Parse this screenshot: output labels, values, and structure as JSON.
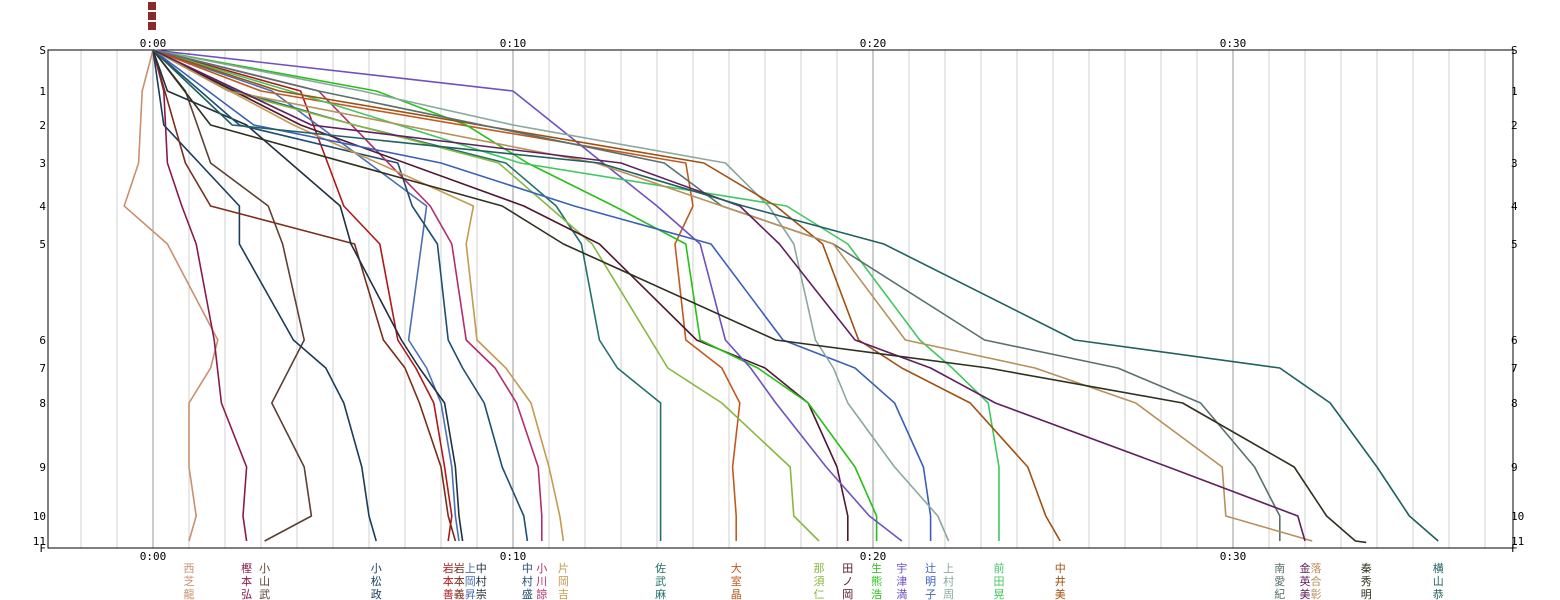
{
  "chart_data": {
    "type": "line",
    "x_unit": "minutes",
    "xlim": [
      0,
      37.5
    ],
    "x_ticks": [
      {
        "v": 0,
        "label": "0:00"
      },
      {
        "v": 10,
        "label": "0:10"
      },
      {
        "v": 20,
        "label": "0:20"
      },
      {
        "v": 30,
        "label": "0:30"
      }
    ],
    "y_ticks": [
      {
        "v": 0,
        "label": "S"
      },
      {
        "v": 1,
        "label": "1"
      },
      {
        "v": 2,
        "label": "2"
      },
      {
        "v": 3,
        "label": "3"
      },
      {
        "v": 4,
        "label": "4"
      },
      {
        "v": 5,
        "label": "5"
      },
      {
        "v": 6,
        "label": "6"
      },
      {
        "v": 7,
        "label": "7"
      },
      {
        "v": 8,
        "label": "8"
      },
      {
        "v": 9,
        "label": "9"
      },
      {
        "v": 10,
        "label": "10"
      },
      {
        "v": 11,
        "label": "11"
      },
      {
        "v": 12,
        "label": "F"
      }
    ],
    "grid": true,
    "series": [
      {
        "name": "西芝龍",
        "color": "#c8906e",
        "finish": 1.0,
        "points": [
          [
            0,
            0
          ],
          [
            -0.3,
            1
          ],
          [
            -0.4,
            3
          ],
          [
            -0.8,
            4
          ],
          [
            0.4,
            5
          ],
          [
            1.8,
            6
          ],
          [
            1.6,
            7
          ],
          [
            1.0,
            8
          ],
          [
            1.0,
            9
          ],
          [
            1.2,
            10
          ],
          [
            1.0,
            11
          ]
        ]
      },
      {
        "name": "樫本弘",
        "color": "#8b1a4b",
        "finish": 2.6,
        "points": [
          [
            0,
            0
          ],
          [
            0.3,
            1
          ],
          [
            0.4,
            3
          ],
          [
            0.8,
            4
          ],
          [
            1.2,
            5
          ],
          [
            1.7,
            6
          ],
          [
            1.9,
            8
          ],
          [
            2.6,
            9
          ],
          [
            2.5,
            10
          ],
          [
            2.6,
            11
          ]
        ]
      },
      {
        "name": "小山武",
        "color": "#5c4033",
        "finish": 3.1,
        "points": [
          [
            0,
            0
          ],
          [
            0.9,
            1
          ],
          [
            1.6,
            3
          ],
          [
            3.2,
            4
          ],
          [
            3.6,
            5
          ],
          [
            4.2,
            6
          ],
          [
            3.3,
            8
          ],
          [
            4.2,
            9
          ],
          [
            4.4,
            10
          ],
          [
            3.1,
            11
          ]
        ]
      },
      {
        "name": "小松政",
        "color": "#1a3d5c",
        "finish": 6.2,
        "points": [
          [
            0,
            0
          ],
          [
            0.3,
            2
          ],
          [
            2.4,
            4
          ],
          [
            2.4,
            5
          ],
          [
            3.9,
            6
          ],
          [
            4.8,
            7
          ],
          [
            5.3,
            8
          ],
          [
            5.8,
            9
          ],
          [
            6.0,
            10
          ],
          [
            6.2,
            11
          ]
        ]
      },
      {
        "name": "岩本善",
        "color": "#b01818",
        "finish": 8.2,
        "points": [
          [
            0,
            0
          ],
          [
            4.1,
            1
          ],
          [
            5.3,
            4
          ],
          [
            6.3,
            5
          ],
          [
            6.8,
            6
          ],
          [
            7.3,
            7
          ],
          [
            7.8,
            8
          ],
          [
            8.1,
            9
          ],
          [
            8.3,
            10
          ],
          [
            8.2,
            11
          ]
        ]
      },
      {
        "name": "岩本義",
        "color": "#7a2e1a",
        "finish": 8.4,
        "points": [
          [
            0,
            0
          ],
          [
            0.9,
            3
          ],
          [
            1.6,
            4
          ],
          [
            5.6,
            5
          ],
          [
            6.4,
            6
          ],
          [
            7.0,
            7
          ],
          [
            7.4,
            8
          ],
          [
            8.0,
            9
          ],
          [
            8.2,
            10
          ],
          [
            8.4,
            11
          ]
        ]
      },
      {
        "name": "上岡昇",
        "color": "#4a6fb5",
        "finish": 8.5,
        "points": [
          [
            0,
            0
          ],
          [
            3.3,
            1
          ],
          [
            7.6,
            4
          ],
          [
            7.1,
            6
          ],
          [
            7.6,
            7
          ],
          [
            8.0,
            8
          ],
          [
            8.3,
            9
          ],
          [
            8.4,
            10
          ],
          [
            8.5,
            11
          ]
        ]
      },
      {
        "name": "中村崇",
        "color": "#203040",
        "finish": 8.6,
        "points": [
          [
            0,
            0
          ],
          [
            0.4,
            1
          ],
          [
            2.6,
            2
          ],
          [
            5.2,
            4
          ],
          [
            5.5,
            5
          ],
          [
            6.9,
            6
          ],
          [
            7.4,
            7
          ],
          [
            8.1,
            8
          ],
          [
            8.4,
            9
          ],
          [
            8.5,
            10
          ],
          [
            8.6,
            11
          ]
        ]
      },
      {
        "name": "中村盛",
        "color": "#1f4f70",
        "finish": 10.4,
        "points": [
          [
            0,
            0
          ],
          [
            2.4,
            2
          ],
          [
            6.8,
            3
          ],
          [
            7.2,
            4
          ],
          [
            7.9,
            5
          ],
          [
            8.2,
            6
          ],
          [
            8.6,
            7
          ],
          [
            9.2,
            8
          ],
          [
            9.7,
            9
          ],
          [
            10.3,
            10
          ],
          [
            10.4,
            11
          ]
        ]
      },
      {
        "name": "小川諒",
        "color": "#b02e6e",
        "finish": 10.8,
        "points": [
          [
            0,
            0
          ],
          [
            4.6,
            1
          ],
          [
            7.7,
            4
          ],
          [
            8.3,
            5
          ],
          [
            8.7,
            6
          ],
          [
            9.5,
            7
          ],
          [
            10.1,
            8
          ],
          [
            10.7,
            9
          ],
          [
            10.8,
            10
          ],
          [
            10.8,
            11
          ]
        ]
      },
      {
        "name": "片岡吉",
        "color": "#c49a50",
        "finish": 11.4,
        "points": [
          [
            0,
            0
          ],
          [
            3.9,
            2
          ],
          [
            8.9,
            4
          ],
          [
            8.7,
            5
          ],
          [
            9.0,
            6
          ],
          [
            9.8,
            7
          ],
          [
            10.5,
            8
          ],
          [
            11.0,
            9
          ],
          [
            11.3,
            10
          ],
          [
            11.4,
            11
          ]
        ]
      },
      {
        "name": "佐武麻",
        "color": "#22716b",
        "finish": 14.1,
        "points": [
          [
            0,
            0
          ],
          [
            2.3,
            1
          ],
          [
            5.6,
            2
          ],
          [
            9.8,
            3
          ],
          [
            11.2,
            4
          ],
          [
            11.9,
            5
          ],
          [
            12.4,
            6
          ],
          [
            12.9,
            7
          ],
          [
            14.1,
            8
          ],
          [
            14.1,
            9
          ],
          [
            14.1,
            10
          ],
          [
            14.1,
            11
          ]
        ]
      },
      {
        "name": "大室晶",
        "color": "#c05a20",
        "finish": 16.2,
        "points": [
          [
            0,
            0
          ],
          [
            3.0,
            1
          ],
          [
            14.8,
            3
          ],
          [
            15.0,
            4
          ],
          [
            14.5,
            5
          ],
          [
            14.8,
            6
          ],
          [
            15.8,
            7
          ],
          [
            16.3,
            8
          ],
          [
            16.1,
            9
          ],
          [
            16.2,
            10
          ],
          [
            16.2,
            11
          ]
        ]
      },
      {
        "name": "那須仁",
        "color": "#88b840",
        "finish": 18.5,
        "points": [
          [
            0,
            0
          ],
          [
            2.1,
            1
          ],
          [
            5.6,
            2
          ],
          [
            9.6,
            3
          ],
          [
            12.2,
            5
          ],
          [
            14.3,
            7
          ],
          [
            15.8,
            8
          ],
          [
            17.7,
            9
          ],
          [
            17.8,
            10
          ],
          [
            18.5,
            11
          ]
        ]
      },
      {
        "name": "田ノ岡",
        "color": "#501830",
        "finish": 19.3,
        "points": [
          [
            0,
            0
          ],
          [
            4.1,
            2
          ],
          [
            10.3,
            4
          ],
          [
            12.4,
            5
          ],
          [
            15.1,
            6
          ],
          [
            17.0,
            7
          ],
          [
            18.2,
            8
          ],
          [
            19.0,
            9
          ],
          [
            19.3,
            10
          ],
          [
            19.3,
            11
          ]
        ]
      },
      {
        "name": "生熊浩",
        "color": "#28c018",
        "finish": 20.1,
        "points": [
          [
            0,
            0
          ],
          [
            6.2,
            1
          ],
          [
            8.7,
            2
          ],
          [
            10.4,
            3
          ],
          [
            12.8,
            4
          ],
          [
            14.8,
            5
          ],
          [
            15.2,
            6
          ],
          [
            16.8,
            7
          ],
          [
            18.2,
            8
          ],
          [
            19.5,
            9
          ],
          [
            20.1,
            10
          ],
          [
            20.1,
            11
          ]
        ]
      },
      {
        "name": "宇津満",
        "color": "#7050c0",
        "finish": 20.8,
        "points": [
          [
            0,
            0
          ],
          [
            10.0,
            1
          ],
          [
            12.5,
            3
          ],
          [
            14.0,
            4
          ],
          [
            15.2,
            5
          ],
          [
            15.9,
            6
          ],
          [
            16.6,
            7
          ],
          [
            17.3,
            8
          ],
          [
            18.7,
            9
          ],
          [
            19.9,
            10
          ],
          [
            20.8,
            11
          ]
        ]
      },
      {
        "name": "辻明子",
        "color": "#3a60b8",
        "finish": 21.6,
        "points": [
          [
            0,
            0
          ],
          [
            2.8,
            2
          ],
          [
            8.0,
            3
          ],
          [
            11.7,
            4
          ],
          [
            15.5,
            5
          ],
          [
            17.5,
            6
          ],
          [
            19.5,
            7
          ],
          [
            20.6,
            8
          ],
          [
            21.4,
            9
          ],
          [
            21.6,
            10
          ],
          [
            21.6,
            11
          ]
        ]
      },
      {
        "name": "上村周",
        "color": "#8aa8a0",
        "finish": 22.1,
        "points": [
          [
            0,
            0
          ],
          [
            5.8,
            1
          ],
          [
            10.0,
            2
          ],
          [
            15.9,
            3
          ],
          [
            17.1,
            4
          ],
          [
            17.8,
            5
          ],
          [
            18.4,
            6
          ],
          [
            18.9,
            7
          ],
          [
            19.3,
            8
          ],
          [
            20.6,
            9
          ],
          [
            21.8,
            10
          ],
          [
            22.1,
            11
          ]
        ]
      },
      {
        "name": "前田晃",
        "color": "#40c860",
        "finish": 23.5,
        "points": [
          [
            0,
            0
          ],
          [
            3.8,
            1
          ],
          [
            10.2,
            3
          ],
          [
            17.6,
            4
          ],
          [
            19.3,
            5
          ],
          [
            21.3,
            6
          ],
          [
            22.2,
            7
          ],
          [
            23.2,
            8
          ],
          [
            23.5,
            9
          ],
          [
            23.5,
            10
          ],
          [
            23.5,
            11
          ]
        ]
      },
      {
        "name": "中井美",
        "color": "#a05010",
        "finish": 25.2,
        "points": [
          [
            0,
            0
          ],
          [
            3.5,
            1
          ],
          [
            15.3,
            3
          ],
          [
            17.3,
            4
          ],
          [
            18.6,
            5
          ],
          [
            19.6,
            6
          ],
          [
            20.8,
            7
          ],
          [
            22.7,
            8
          ],
          [
            24.3,
            9
          ],
          [
            24.8,
            10
          ],
          [
            25.2,
            11
          ]
        ]
      },
      {
        "name": "南愛紀",
        "color": "#5a7070",
        "finish": 31.3,
        "points": [
          [
            0,
            0
          ],
          [
            4.6,
            1
          ],
          [
            14.2,
            3
          ],
          [
            15.8,
            4
          ],
          [
            18.9,
            5
          ],
          [
            23.1,
            6
          ],
          [
            26.8,
            7
          ],
          [
            29.1,
            8
          ],
          [
            30.6,
            9
          ],
          [
            31.3,
            10
          ],
          [
            31.3,
            11
          ]
        ]
      },
      {
        "name": "落合彰",
        "color": "#b8905a",
        "finish": 32.2,
        "points": [
          [
            0,
            0
          ],
          [
            2.1,
            1
          ],
          [
            12.3,
            3
          ],
          [
            15.8,
            4
          ],
          [
            18.9,
            5
          ],
          [
            20.9,
            6
          ],
          [
            24.5,
            7
          ],
          [
            27.3,
            8
          ],
          [
            29.7,
            9
          ],
          [
            29.8,
            10
          ],
          [
            32.2,
            11
          ]
        ]
      },
      {
        "name": "金英美",
        "color": "#602060",
        "finish": 32.0,
        "points": [
          [
            0,
            0
          ],
          [
            4.4,
            2
          ],
          [
            13.0,
            3
          ],
          [
            16.3,
            4
          ],
          [
            17.4,
            5
          ],
          [
            19.5,
            6
          ],
          [
            21.6,
            7
          ],
          [
            23.4,
            8
          ],
          [
            28.2,
            9
          ],
          [
            31.8,
            10
          ],
          [
            32.0,
            11
          ]
        ]
      },
      {
        "name": "秦秀明",
        "color": "#303020",
        "finish": 33.7,
        "points": [
          [
            0,
            0
          ],
          [
            1.6,
            2
          ],
          [
            9.7,
            4
          ],
          [
            11.4,
            5
          ],
          [
            17.3,
            6
          ],
          [
            23.2,
            7
          ],
          [
            28.6,
            8
          ],
          [
            31.7,
            9
          ],
          [
            32.6,
            10
          ],
          [
            33.4,
            11
          ],
          [
            33.7,
            11.2
          ]
        ]
      },
      {
        "name": "横山恭",
        "color": "#206060",
        "finish": 35.7,
        "points": [
          [
            0,
            0
          ],
          [
            2.2,
            2
          ],
          [
            12.4,
            3
          ],
          [
            16.4,
            4
          ],
          [
            20.3,
            5
          ],
          [
            25.6,
            6
          ],
          [
            31.3,
            7
          ],
          [
            32.7,
            8
          ],
          [
            34.0,
            9
          ],
          [
            34.9,
            10
          ],
          [
            35.7,
            11
          ]
        ]
      }
    ]
  }
}
